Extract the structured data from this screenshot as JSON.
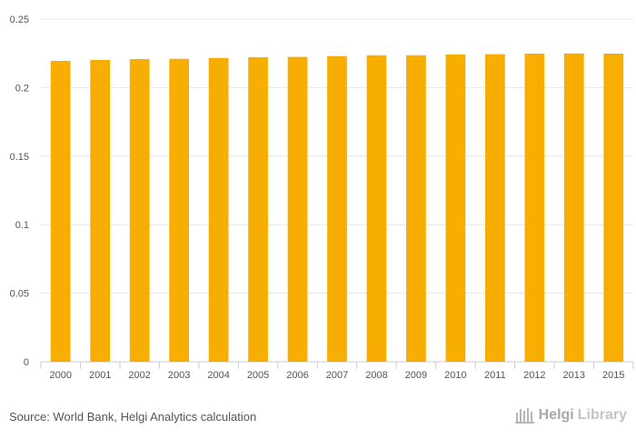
{
  "chart_data": {
    "type": "bar",
    "categories": [
      "2000",
      "2001",
      "2002",
      "2003",
      "2004",
      "2005",
      "2006",
      "2007",
      "2008",
      "2009",
      "2010",
      "2011",
      "2012",
      "2013",
      "2015"
    ],
    "values": [
      0.2195,
      0.2202,
      0.2208,
      0.221,
      0.2216,
      0.2222,
      0.2224,
      0.223,
      0.2236,
      0.2236,
      0.2242,
      0.2244,
      0.2248,
      0.2249,
      0.2248
    ],
    "title": "",
    "xlabel": "",
    "ylabel": "",
    "ylim": [
      0,
      0.25
    ],
    "yticks": [
      "0",
      "0.05",
      "0.1",
      "0.15",
      "0.2",
      "0.25"
    ],
    "grid": true,
    "bar_color": "#f7ae00"
  },
  "footer": {
    "source": "Source: World Bank, Helgi Analytics calculation",
    "logo_helgi": "Helgi",
    "logo_library": "Library"
  }
}
